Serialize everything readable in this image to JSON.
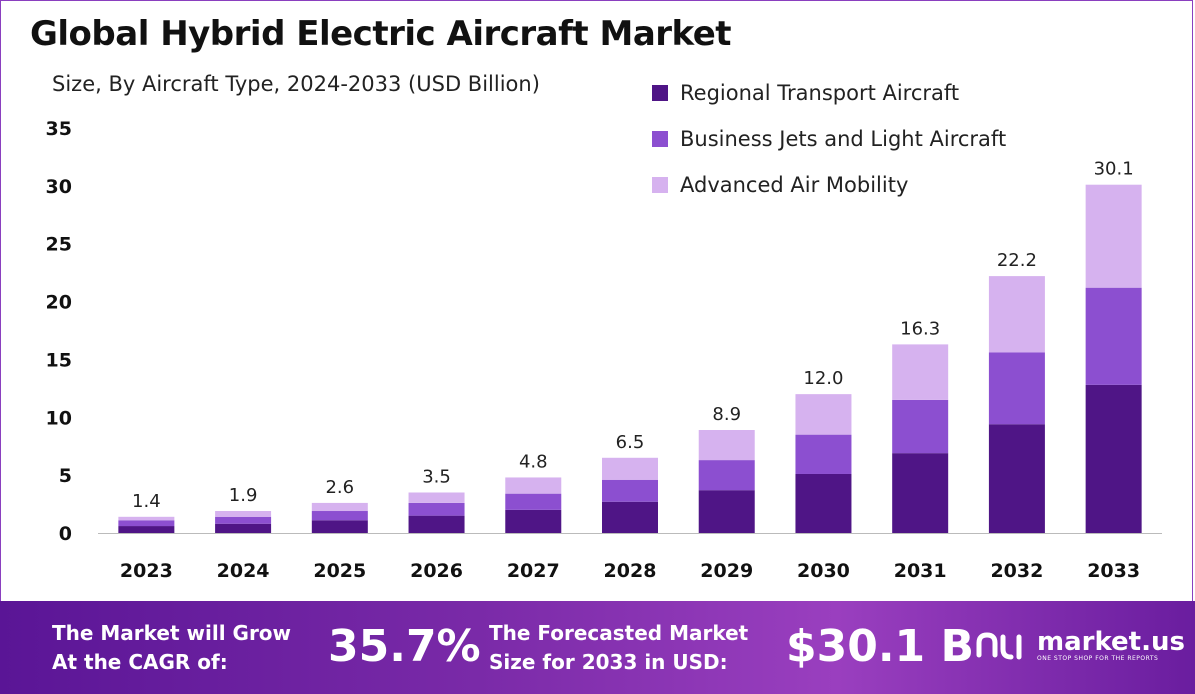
{
  "header": {
    "title": "Global Hybrid Electric Aircraft Market",
    "subtitle": "Size, By Aircraft Type, 2024-2033 (USD Billion)"
  },
  "colors": {
    "regional": "#4f1586",
    "business": "#8c4fd0",
    "mobility": "#d6b2ef",
    "footer_purple": "#6f22a4",
    "frame": "#8a3fbf"
  },
  "chart_data": {
    "type": "bar",
    "stacked": true,
    "categories": [
      "2023",
      "2024",
      "2025",
      "2026",
      "2027",
      "2028",
      "2029",
      "2030",
      "2031",
      "2032",
      "2033"
    ],
    "series": [
      {
        "name": "Regional Transport Aircraft",
        "values": [
          0.6,
          0.8,
          1.1,
          1.5,
          2.0,
          2.7,
          3.7,
          5.1,
          6.9,
          9.4,
          12.8
        ]
      },
      {
        "name": "Business Jets and Light Aircraft",
        "values": [
          0.5,
          0.6,
          0.8,
          1.1,
          1.4,
          1.9,
          2.6,
          3.4,
          4.6,
          6.2,
          8.4
        ]
      },
      {
        "name": "Advanced Air Mobility",
        "values": [
          0.3,
          0.5,
          0.7,
          0.9,
          1.4,
          1.9,
          2.6,
          3.5,
          4.8,
          6.6,
          8.9
        ]
      }
    ],
    "totals": [
      "1.4",
      "1.9",
      "2.6",
      "3.5",
      "4.8",
      "6.5",
      "8.9",
      "12.0",
      "16.3",
      "22.2",
      "30.1"
    ],
    "y_ticks": [
      "0",
      "5",
      "10",
      "15",
      "20",
      "25",
      "30",
      "35"
    ],
    "ylim": [
      0,
      35
    ],
    "grid": false,
    "legend_position": "top-right"
  },
  "footer": {
    "cagr_label_line1": "The Market will Grow",
    "cagr_label_line2": "At the CAGR of:",
    "cagr_value": "35.7%",
    "forecast_label_line1": "The Forecasted Market",
    "forecast_label_line2": "Size for 2033 in USD:",
    "forecast_value": "$30.1 B",
    "brand_name": "market.us",
    "brand_tagline": "ONE STOP SHOP FOR THE REPORTS",
    "brand_icon": "market-us-logo-icon"
  }
}
